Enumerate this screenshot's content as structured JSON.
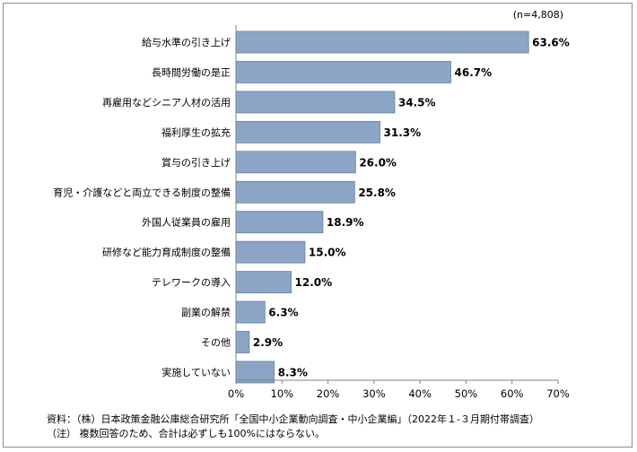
{
  "chart_data": {
    "type": "bar",
    "orientation": "horizontal",
    "n_label": "(n=4,808)",
    "categories": [
      "給与水準の引き上げ",
      "長時間労働の是正",
      "再雇用などシニア人材の活用",
      "福利厚生の拡充",
      "賞与の引き上げ",
      "育児・介護などと両立できる制度の整備",
      "外国人従業員の雇用",
      "研修など能力育成制度の整備",
      "テレワークの導入",
      "副業の解禁",
      "その他",
      "実施していない"
    ],
    "values": [
      63.6,
      46.7,
      34.5,
      31.3,
      26.0,
      25.8,
      18.9,
      15.0,
      12.0,
      6.3,
      2.9,
      8.3
    ],
    "value_labels": [
      "63.6%",
      "46.7%",
      "34.5%",
      "31.3%",
      "26.0%",
      "25.8%",
      "18.9%",
      "15.0%",
      "12.0%",
      "6.3%",
      "2.9%",
      "8.3%"
    ],
    "xlim": [
      0,
      70
    ],
    "x_ticks": [
      0,
      10,
      20,
      30,
      40,
      50,
      60,
      70
    ],
    "x_tick_labels": [
      "0%",
      "10%",
      "20%",
      "30%",
      "40%",
      "50%",
      "60%",
      "70%"
    ],
    "bar_color": "#8ca5c6",
    "bar_edge_color": "#5f7fa8",
    "grid": false
  },
  "notes": {
    "source": "資料：（株）日本政策金融公庫総合研究所「全国中小企業動向調査・中小企業編」（2022年１-３月期付帯調査）",
    "note": "（注） 複数回答のため、合計は必ずしも100%にはならない。"
  }
}
